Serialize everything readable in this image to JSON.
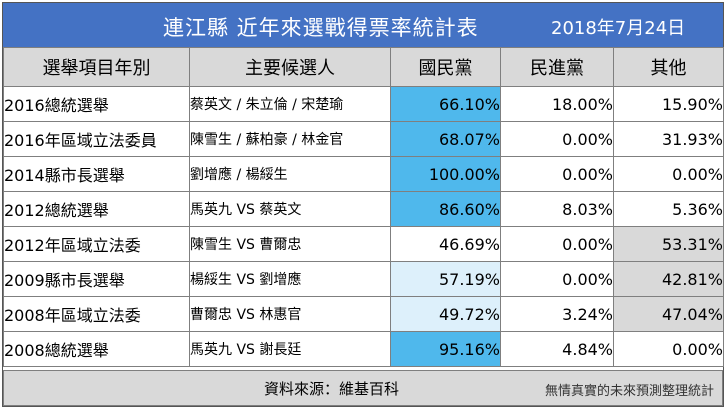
{
  "title": "連江縣 近年來選戰得票率統計表",
  "date": "2018年7月24日",
  "headers": {
    "election": "選舉項目年別",
    "candidates": "主要候選人",
    "kmt": "國民黨",
    "dpp": "民進黨",
    "other": "其他"
  },
  "rows": [
    {
      "election": "2016總統選舉",
      "candidates": "蔡英文 / 朱立倫 / 宋楚瑜",
      "kmt": "66.10%",
      "dpp": "18.00%",
      "other": "15.90%"
    },
    {
      "election": "2016年區域立法委員",
      "candidates": "陳雪生 / 蘇柏豪 / 林金官",
      "kmt": "68.07%",
      "dpp": "0.00%",
      "other": "31.93%"
    },
    {
      "election": "2014縣市長選舉",
      "candidates": "劉增應 / 楊綏生",
      "kmt": "100.00%",
      "dpp": "0.00%",
      "other": "0.00%"
    },
    {
      "election": "2012總統選舉",
      "candidates": "馬英九 VS 蔡英文",
      "kmt": "86.60%",
      "dpp": "8.03%",
      "other": "5.36%"
    },
    {
      "election": "2012年區域立法委",
      "candidates": "陳雪生 VS 曹爾忠",
      "kmt": "46.69%",
      "dpp": "0.00%",
      "other": "53.31%"
    },
    {
      "election": "2009縣市長選舉",
      "candidates": "楊綏生 VS 劉增應",
      "kmt": "57.19%",
      "dpp": "0.00%",
      "other": "42.81%"
    },
    {
      "election": "2008年區域立法委",
      "candidates": "曹爾忠 VS 林惠官",
      "kmt": "49.72%",
      "dpp": "3.24%",
      "other": "47.04%"
    },
    {
      "election": "2008總統選舉",
      "candidates": "馬英九 VS 謝長廷",
      "kmt": "95.16%",
      "dpp": "4.84%",
      "other": "0.00%"
    }
  ],
  "footer": {
    "source": "資料來源：維基百科",
    "note": "無情真實的未來預測整理統計"
  },
  "colors": {
    "title_bg": "#4472c4",
    "kmt_blue": "#4fb8ec",
    "kmt_light": "#ddf0fb",
    "dpp_green": "#92d050",
    "grey": "#d9d9d9"
  }
}
